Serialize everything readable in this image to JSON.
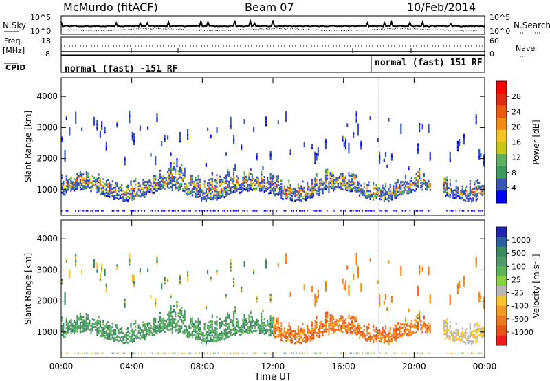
{
  "header": {
    "station": "McMurdo (fitACF)",
    "beam": "Beam 07",
    "date": "10/Feb/2014"
  },
  "nsky_panel": {
    "left_label": "N.Sky",
    "right_label": "N.Search",
    "left_ticks": [
      "10^5",
      "10^0"
    ],
    "right_ticks": [
      "10^5",
      "10^0"
    ]
  },
  "freq_panel": {
    "left_label_top": "Freq.",
    "left_label_bottom": "[MHz]",
    "right_label": "Nave",
    "left_ticks": [
      "18",
      "8"
    ],
    "right_ticks": [
      "60",
      "0"
    ]
  },
  "cpid_panel": {
    "label": "CPID",
    "segments": [
      "normal (fast) -151 RF",
      "normal (fast) 151 RF"
    ]
  },
  "colors": {
    "power": [
      "#0000ff",
      "#3a55b8",
      "#3c9a5a",
      "#5fb05f",
      "#c7c816",
      "#f3c520",
      "#f08a12",
      "#ec5a10",
      "#e22a10",
      "#ff0000"
    ],
    "velocity": [
      "#2323b0",
      "#2a5fa0",
      "#3a8a62",
      "#4f9a68",
      "#5db55a",
      "#8ad23e",
      "#b8b8b8",
      "#f5c230",
      "#f59a20",
      "#f07820",
      "#ec5218",
      "#ee1d1d"
    ]
  },
  "chart_data": [
    {
      "type": "heatmap",
      "name": "power",
      "ylabel": "Slant Range [km]",
      "yticks": [
        1000,
        2000,
        3000,
        4000
      ],
      "ylim": [
        180,
        4600
      ],
      "xlim": [
        0,
        24
      ],
      "colorbar_label": "Power [dB]",
      "colorbar_ticks": [
        "4",
        "8",
        "12",
        "16",
        "20",
        "24",
        "28"
      ],
      "colorbar_range": [
        0,
        30
      ]
    },
    {
      "type": "heatmap",
      "name": "velocity",
      "ylabel": "Slant Range [km]",
      "yticks": [
        1000,
        2000,
        3000,
        4000
      ],
      "ylim": [
        180,
        4600
      ],
      "xlim": [
        0,
        24
      ],
      "colorbar_label": "Velocity [m s⁻¹]",
      "colorbar_ticks": [
        "1000",
        "500",
        "100",
        "25",
        "-25",
        "-100",
        "-500",
        "-1000"
      ]
    }
  ],
  "xaxis": {
    "label": "Time UT",
    "ticks": [
      "00:00",
      "04:00",
      "08:00",
      "12:00",
      "16:00",
      "20:00",
      "00:00"
    ],
    "tick_hours": [
      0,
      4,
      8,
      12,
      16,
      20,
      24
    ],
    "mode_change_hour": 18.0
  }
}
